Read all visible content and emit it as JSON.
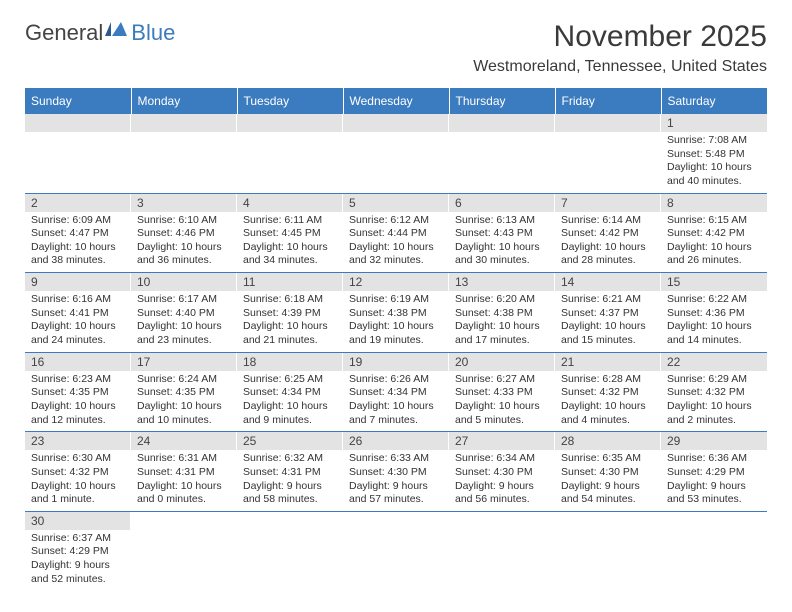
{
  "logo": {
    "text_a": "General",
    "text_b": "Blue"
  },
  "title": "November 2025",
  "location": "Westmoreland, Tennessee, United States",
  "colors": {
    "header_bg": "#3b7bbf",
    "header_text": "#ffffff",
    "daynum_bg": "#e3e3e3",
    "border": "#3b7bbf",
    "text": "#333333"
  },
  "day_headers": [
    "Sunday",
    "Monday",
    "Tuesday",
    "Wednesday",
    "Thursday",
    "Friday",
    "Saturday"
  ],
  "weeks": [
    [
      null,
      null,
      null,
      null,
      null,
      null,
      {
        "n": "1",
        "sr": "7:08 AM",
        "ss": "5:48 PM",
        "dl": "10 hours and 40 minutes."
      }
    ],
    [
      {
        "n": "2",
        "sr": "6:09 AM",
        "ss": "4:47 PM",
        "dl": "10 hours and 38 minutes."
      },
      {
        "n": "3",
        "sr": "6:10 AM",
        "ss": "4:46 PM",
        "dl": "10 hours and 36 minutes."
      },
      {
        "n": "4",
        "sr": "6:11 AM",
        "ss": "4:45 PM",
        "dl": "10 hours and 34 minutes."
      },
      {
        "n": "5",
        "sr": "6:12 AM",
        "ss": "4:44 PM",
        "dl": "10 hours and 32 minutes."
      },
      {
        "n": "6",
        "sr": "6:13 AM",
        "ss": "4:43 PM",
        "dl": "10 hours and 30 minutes."
      },
      {
        "n": "7",
        "sr": "6:14 AM",
        "ss": "4:42 PM",
        "dl": "10 hours and 28 minutes."
      },
      {
        "n": "8",
        "sr": "6:15 AM",
        "ss": "4:42 PM",
        "dl": "10 hours and 26 minutes."
      }
    ],
    [
      {
        "n": "9",
        "sr": "6:16 AM",
        "ss": "4:41 PM",
        "dl": "10 hours and 24 minutes."
      },
      {
        "n": "10",
        "sr": "6:17 AM",
        "ss": "4:40 PM",
        "dl": "10 hours and 23 minutes."
      },
      {
        "n": "11",
        "sr": "6:18 AM",
        "ss": "4:39 PM",
        "dl": "10 hours and 21 minutes."
      },
      {
        "n": "12",
        "sr": "6:19 AM",
        "ss": "4:38 PM",
        "dl": "10 hours and 19 minutes."
      },
      {
        "n": "13",
        "sr": "6:20 AM",
        "ss": "4:38 PM",
        "dl": "10 hours and 17 minutes."
      },
      {
        "n": "14",
        "sr": "6:21 AM",
        "ss": "4:37 PM",
        "dl": "10 hours and 15 minutes."
      },
      {
        "n": "15",
        "sr": "6:22 AM",
        "ss": "4:36 PM",
        "dl": "10 hours and 14 minutes."
      }
    ],
    [
      {
        "n": "16",
        "sr": "6:23 AM",
        "ss": "4:35 PM",
        "dl": "10 hours and 12 minutes."
      },
      {
        "n": "17",
        "sr": "6:24 AM",
        "ss": "4:35 PM",
        "dl": "10 hours and 10 minutes."
      },
      {
        "n": "18",
        "sr": "6:25 AM",
        "ss": "4:34 PM",
        "dl": "10 hours and 9 minutes."
      },
      {
        "n": "19",
        "sr": "6:26 AM",
        "ss": "4:34 PM",
        "dl": "10 hours and 7 minutes."
      },
      {
        "n": "20",
        "sr": "6:27 AM",
        "ss": "4:33 PM",
        "dl": "10 hours and 5 minutes."
      },
      {
        "n": "21",
        "sr": "6:28 AM",
        "ss": "4:32 PM",
        "dl": "10 hours and 4 minutes."
      },
      {
        "n": "22",
        "sr": "6:29 AM",
        "ss": "4:32 PM",
        "dl": "10 hours and 2 minutes."
      }
    ],
    [
      {
        "n": "23",
        "sr": "6:30 AM",
        "ss": "4:32 PM",
        "dl": "10 hours and 1 minute."
      },
      {
        "n": "24",
        "sr": "6:31 AM",
        "ss": "4:31 PM",
        "dl": "10 hours and 0 minutes."
      },
      {
        "n": "25",
        "sr": "6:32 AM",
        "ss": "4:31 PM",
        "dl": "9 hours and 58 minutes."
      },
      {
        "n": "26",
        "sr": "6:33 AM",
        "ss": "4:30 PM",
        "dl": "9 hours and 57 minutes."
      },
      {
        "n": "27",
        "sr": "6:34 AM",
        "ss": "4:30 PM",
        "dl": "9 hours and 56 minutes."
      },
      {
        "n": "28",
        "sr": "6:35 AM",
        "ss": "4:30 PM",
        "dl": "9 hours and 54 minutes."
      },
      {
        "n": "29",
        "sr": "6:36 AM",
        "ss": "4:29 PM",
        "dl": "9 hours and 53 minutes."
      }
    ],
    [
      {
        "n": "30",
        "sr": "6:37 AM",
        "ss": "4:29 PM",
        "dl": "9 hours and 52 minutes."
      },
      null,
      null,
      null,
      null,
      null,
      null
    ]
  ],
  "labels": {
    "sunrise": "Sunrise:",
    "sunset": "Sunset:",
    "daylight": "Daylight:"
  }
}
